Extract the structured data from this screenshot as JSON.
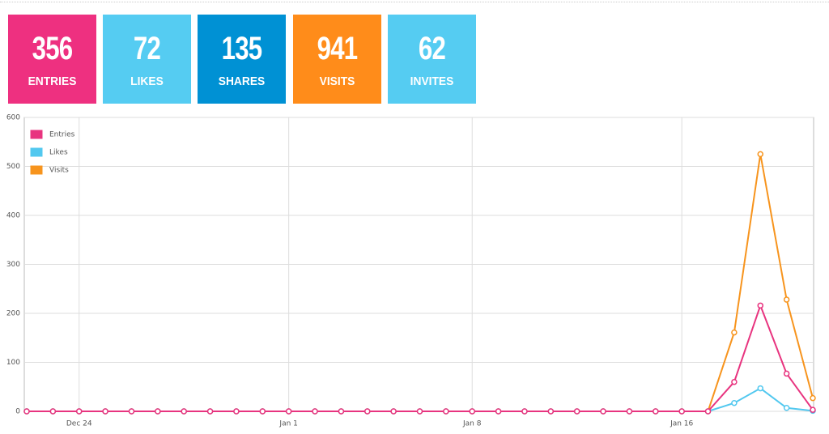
{
  "tiles": [
    {
      "value": "356",
      "label": "ENTRIES",
      "color": "#ee3080"
    },
    {
      "value": "72",
      "label": "LIKES",
      "color": "#55ccf2"
    },
    {
      "value": "135",
      "label": "SHARES",
      "color": "#0091d4"
    },
    {
      "value": "941",
      "label": "VISITS",
      "color": "#ff8c1a"
    },
    {
      "value": "62",
      "label": "INVITES",
      "color": "#55ccf2"
    }
  ],
  "chart_data": {
    "type": "line",
    "categories": [
      null,
      null,
      "Dec 24",
      null,
      null,
      null,
      null,
      null,
      null,
      null,
      "Jan 1",
      null,
      null,
      null,
      null,
      null,
      null,
      "Jan 8",
      null,
      null,
      null,
      null,
      null,
      null,
      null,
      "Jan 16",
      null,
      null,
      null,
      null,
      null
    ],
    "series": [
      {
        "name": "Entries",
        "color": "#e8347f",
        "values": [
          0,
          0,
          0,
          0,
          0,
          0,
          0,
          0,
          0,
          0,
          0,
          0,
          0,
          0,
          0,
          0,
          0,
          0,
          0,
          0,
          0,
          0,
          0,
          0,
          0,
          0,
          0,
          60,
          216,
          77,
          3
        ]
      },
      {
        "name": "Likes",
        "color": "#52c8ef",
        "values": [
          0,
          0,
          0,
          0,
          0,
          0,
          0,
          0,
          0,
          0,
          0,
          0,
          0,
          0,
          0,
          0,
          0,
          0,
          0,
          0,
          0,
          0,
          0,
          0,
          0,
          0,
          0,
          17,
          47,
          7,
          1
        ]
      },
      {
        "name": "Visits",
        "color": "#f7941d",
        "values": [
          0,
          0,
          0,
          0,
          0,
          0,
          0,
          0,
          0,
          0,
          0,
          0,
          0,
          0,
          0,
          0,
          0,
          0,
          0,
          0,
          0,
          0,
          0,
          0,
          0,
          0,
          0,
          161,
          525,
          228,
          27
        ]
      }
    ],
    "ylim": [
      0,
      600
    ],
    "yticks": [
      0,
      100,
      200,
      300,
      400,
      500,
      600
    ],
    "grid": true,
    "legend": "top-left"
  }
}
